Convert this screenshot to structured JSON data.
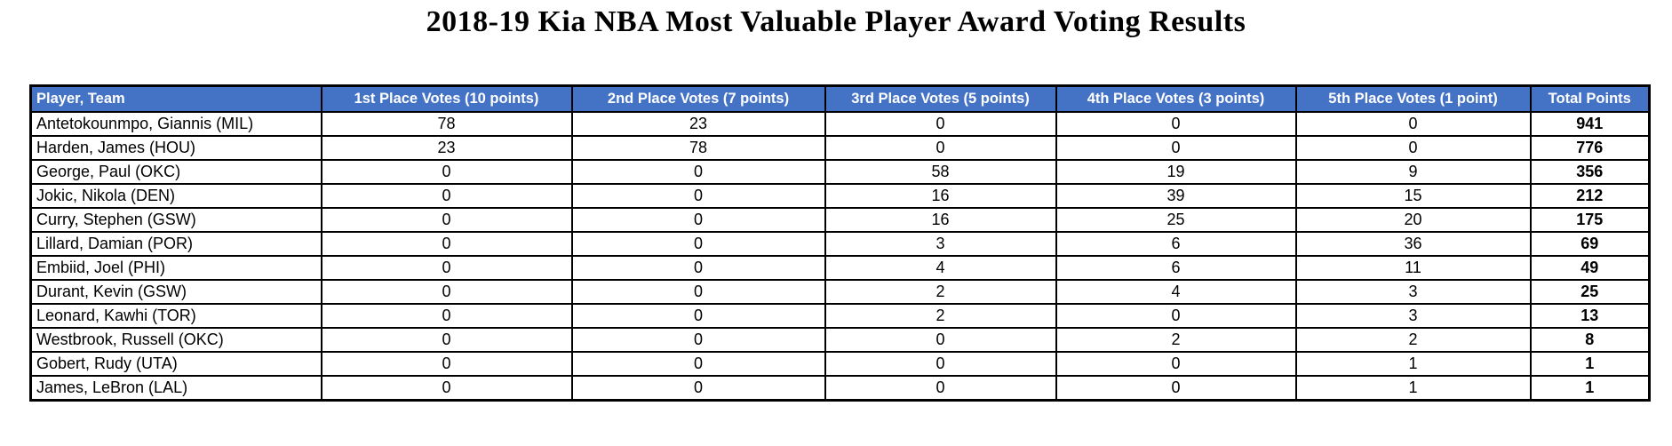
{
  "title": "2018-19 Kia NBA Most Valuable Player Award Voting Results",
  "colors": {
    "header_bg": "#4472C4",
    "header_text": "#FFFFFF",
    "border": "#000000",
    "body_text": "#000000"
  },
  "table": {
    "columns": [
      "Player, Team",
      "1st Place Votes (10 points)",
      "2nd Place Votes (7 points)",
      "3rd Place Votes (5 points)",
      "4th Place Votes (3 points)",
      "5th Place Votes (1 point)",
      "Total Points"
    ],
    "rows": [
      {
        "player": "Antetokounmpo, Giannis (MIL)",
        "votes": [
          "78",
          "23",
          "0",
          "0",
          "0"
        ],
        "total": "941"
      },
      {
        "player": "Harden, James (HOU)",
        "votes": [
          "23",
          "78",
          "0",
          "0",
          "0"
        ],
        "total": "776"
      },
      {
        "player": "George, Paul (OKC)",
        "votes": [
          "0",
          "0",
          "58",
          "19",
          "9"
        ],
        "total": "356"
      },
      {
        "player": "Jokic, Nikola (DEN)",
        "votes": [
          "0",
          "0",
          "16",
          "39",
          "15"
        ],
        "total": "212"
      },
      {
        "player": "Curry, Stephen (GSW)",
        "votes": [
          "0",
          "0",
          "16",
          "25",
          "20"
        ],
        "total": "175"
      },
      {
        "player": "Lillard, Damian (POR)",
        "votes": [
          "0",
          "0",
          "3",
          "6",
          "36"
        ],
        "total": "69"
      },
      {
        "player": "Embiid, Joel (PHI)",
        "votes": [
          "0",
          "0",
          "4",
          "6",
          "11"
        ],
        "total": "49"
      },
      {
        "player": "Durant, Kevin (GSW)",
        "votes": [
          "0",
          "0",
          "2",
          "4",
          "3"
        ],
        "total": "25"
      },
      {
        "player": "Leonard, Kawhi (TOR)",
        "votes": [
          "0",
          "0",
          "2",
          "0",
          "3"
        ],
        "total": "13"
      },
      {
        "player": "Westbrook, Russell (OKC)",
        "votes": [
          "0",
          "0",
          "0",
          "2",
          "2"
        ],
        "total": "8"
      },
      {
        "player": "Gobert, Rudy (UTA)",
        "votes": [
          "0",
          "0",
          "0",
          "0",
          "1"
        ],
        "total": "1"
      },
      {
        "player": "James, LeBron (LAL)",
        "votes": [
          "0",
          "0",
          "0",
          "0",
          "1"
        ],
        "total": "1"
      }
    ]
  }
}
